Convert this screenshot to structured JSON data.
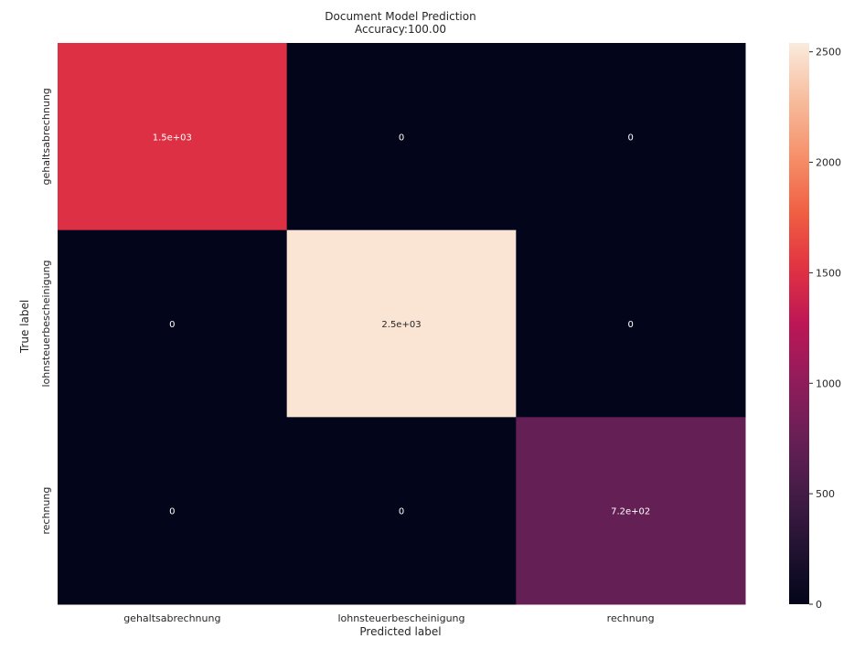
{
  "chart_data": {
    "type": "heatmap",
    "title": "Document Model Prediction",
    "subtitle": "Accuracy:100.00",
    "xlabel": "Predicted label",
    "ylabel": "True label",
    "x_categories": [
      "gehaltsabrechnung",
      "lohnsteuerbescheinigung",
      "rechnung"
    ],
    "y_categories": [
      "gehaltsabrechnung",
      "lohnsteuerbescheinigung",
      "rechnung"
    ],
    "values": [
      [
        1500,
        0,
        0
      ],
      [
        0,
        2500,
        0
      ],
      [
        0,
        0,
        720
      ]
    ],
    "annotations": [
      [
        "1.5e+03",
        "0",
        "0"
      ],
      [
        "0",
        "2.5e+03",
        "0"
      ],
      [
        "0",
        "0",
        "7.2e+02"
      ]
    ],
    "colorbar": {
      "min": 0,
      "max": 2540,
      "ticks": [
        0,
        500,
        1000,
        1500,
        2000,
        2500
      ],
      "tick_labels": [
        "0",
        "500",
        "1000",
        "1500",
        "2000",
        "2500"
      ],
      "colormap": "rocket"
    }
  }
}
